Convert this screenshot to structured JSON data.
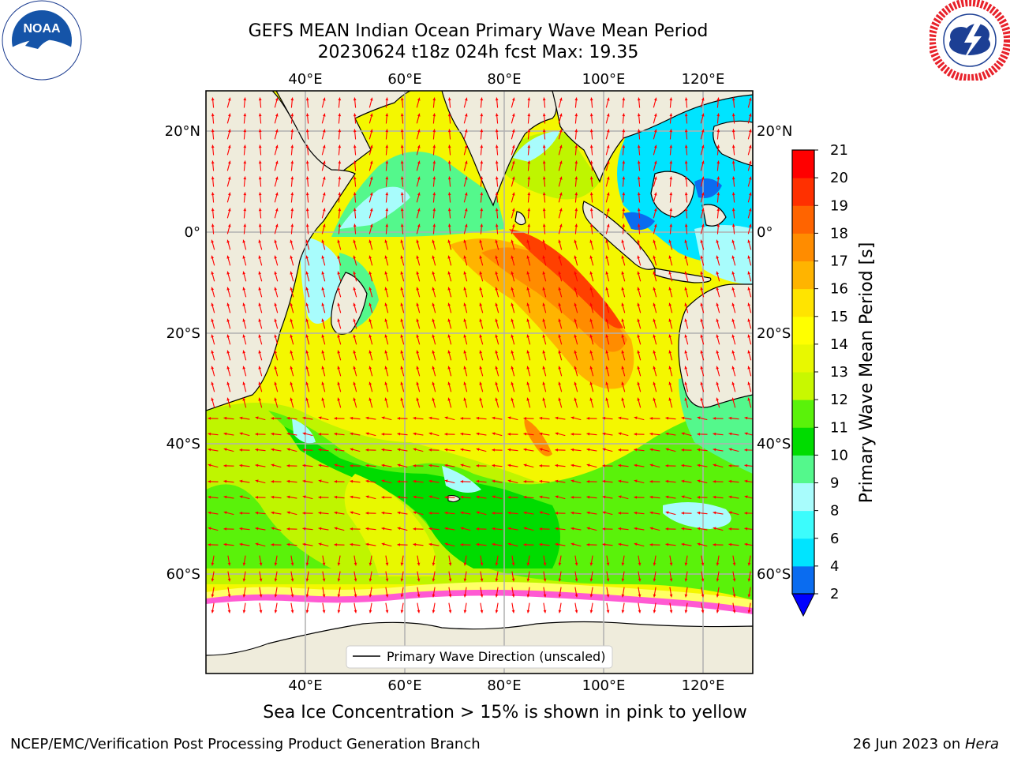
{
  "title": {
    "line1": "GEFS MEAN Indian Ocean Primary Wave Mean Period",
    "line2": "20230624 t18z 024h fcst   Max: 19.35"
  },
  "logos": {
    "left": {
      "icon": "noaa-logo-icon",
      "text": "NOAA"
    },
    "right": {
      "icon": "national-weather-service-logo-icon"
    }
  },
  "map": {
    "lon_ticks_top": [
      "40°E",
      "60°E",
      "80°E",
      "100°E",
      "120°E"
    ],
    "lon_ticks_bottom": [
      "40°E",
      "60°E",
      "80°E",
      "100°E",
      "120°E"
    ],
    "lat_ticks_left": [
      "20°N",
      "0°",
      "20°S",
      "40°S",
      "60°S"
    ],
    "lat_ticks_right": [
      "20°N",
      "0°",
      "20°S",
      "40°S",
      "60°S"
    ],
    "legend_label": "Primary Wave Direction (unscaled)",
    "colors": {
      "land": "#efecdc",
      "sea_ice": "#ffffff",
      "arrows": "#ff0000",
      "grid": "#b0b0b0"
    }
  },
  "colorbar": {
    "label": "Primary Wave Mean Period [s]",
    "ticks": [
      "2",
      "4",
      "6",
      "8",
      "9",
      "10",
      "11",
      "12",
      "13",
      "14",
      "15",
      "16",
      "17",
      "18",
      "19",
      "20",
      "21"
    ],
    "colors": [
      "#0a6cf0",
      "#00e4ff",
      "#3cfcfc",
      "#a8fcfc",
      "#54f88c",
      "#00dc00",
      "#5af20a",
      "#c8f800",
      "#e8f800",
      "#ffff00",
      "#ffe400",
      "#ffb400",
      "#ff8c00",
      "#ff6400",
      "#ff3000",
      "#ff0000"
    ],
    "extend_min_color": "#0000ff"
  },
  "caption": "Sea Ice Concentration > 15% is shown in pink to yellow",
  "footer": {
    "left": "NCEP/EMC/Verification Post Processing Product Generation Branch",
    "right_prefix": "26 Jun 2023 on ",
    "right_machine": "Hera"
  }
}
